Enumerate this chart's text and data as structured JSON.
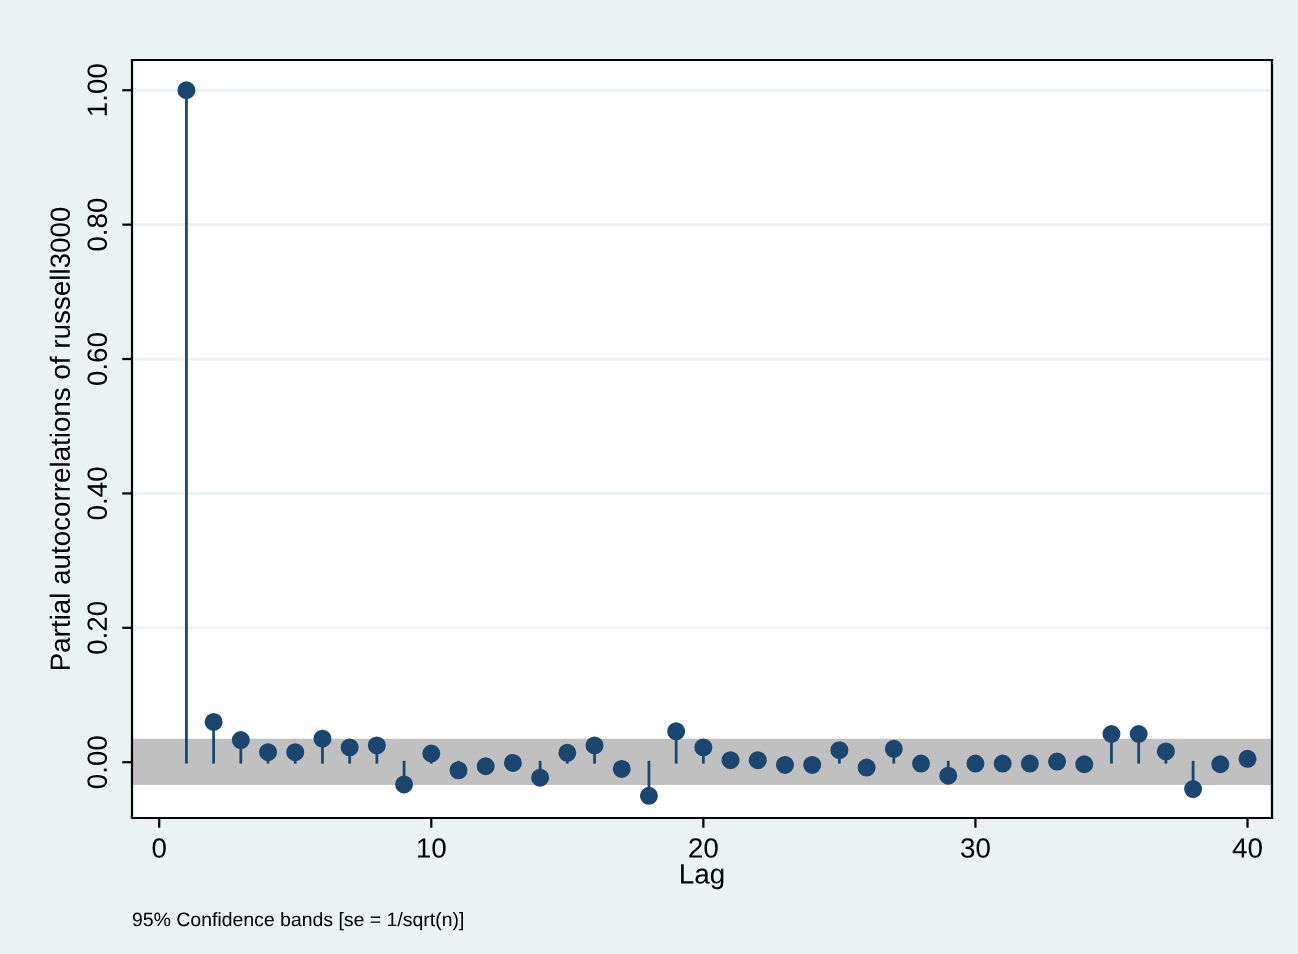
{
  "chart_data": {
    "type": "lollipop",
    "xlabel": "Lag",
    "ylabel": "Partial autocorrelations of russell3000",
    "x": [
      1,
      2,
      3,
      4,
      5,
      6,
      7,
      8,
      9,
      10,
      11,
      12,
      13,
      14,
      15,
      16,
      17,
      18,
      19,
      20,
      21,
      22,
      23,
      24,
      25,
      26,
      27,
      28,
      29,
      30,
      31,
      32,
      33,
      34,
      35,
      36,
      37,
      38,
      39,
      40
    ],
    "series": [
      {
        "color": "#1a476f",
        "values": [
          1.0,
          0.06,
          0.033,
          0.015,
          0.015,
          0.035,
          0.022,
          0.025,
          -0.033,
          0.013,
          -0.012,
          -0.006,
          -0.001,
          -0.023,
          0.014,
          0.025,
          -0.01,
          -0.05,
          0.046,
          0.022,
          0.003,
          0.003,
          -0.004,
          -0.004,
          0.018,
          -0.008,
          0.02,
          -0.002,
          -0.02,
          -0.002,
          -0.002,
          -0.002,
          0.001,
          -0.003,
          0.042,
          0.042,
          0.016,
          -0.04,
          -0.003,
          0.005
        ]
      }
    ],
    "bands": [
      {
        "axis": "y",
        "from": -0.034,
        "to": 0.035,
        "color": "#c0c0c0"
      }
    ],
    "xlim": [
      -1.0,
      40.9
    ],
    "ylim": [
      -0.083,
      1.045
    ],
    "xticks": [
      0,
      10,
      20,
      30,
      40
    ],
    "yticks": [
      {
        "value": 0,
        "label": "0.00"
      },
      {
        "value": 0.2,
        "label": "0.20"
      },
      {
        "value": 0.4,
        "label": "0.40"
      },
      {
        "value": 0.6,
        "label": "0.60"
      },
      {
        "value": 0.8,
        "label": "0.80"
      },
      {
        "value": 1.0,
        "label": "1.00"
      }
    ],
    "grid": "y",
    "marker": "circle",
    "legend": false,
    "annotations": [
      "95% Confidence bands [se = 1/sqrt(n)]"
    ]
  }
}
